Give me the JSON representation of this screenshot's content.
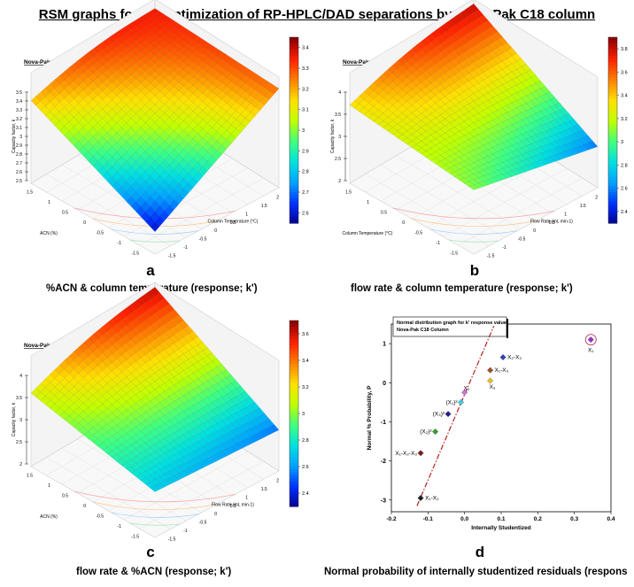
{
  "page_title": "RSM graphs for the optimization of RP-HPLC/DAD separations by Nova-Pak C18 column",
  "panels": {
    "a": {
      "letter": "a",
      "caption": "%ACN & column temperature (response; k')"
    },
    "b": {
      "letter": "b",
      "caption": "flow rate & column temperature (response; k')"
    },
    "c": {
      "letter": "c",
      "caption": "flow rate & %ACN (response; k')"
    },
    "d": {
      "letter": "d",
      "caption": "Normal probability of internally studentized residuals (respons"
    }
  },
  "colormap": [
    "#00008b",
    "#0030ff",
    "#00a0ff",
    "#00e0e0",
    "#40ff80",
    "#c0ff00",
    "#ffe000",
    "#ff8000",
    "#ff2000",
    "#8b0000"
  ],
  "chart_data": [
    {
      "id": "a",
      "type": "surface",
      "inset_label": "Nova-Pak C₁₈ column",
      "zlabel": "Capacity factor, k",
      "ylabel": "ACN (%)",
      "xlabel": "Column Temperature (°C)",
      "zlim": [
        2.5,
        3.5
      ],
      "z_ticks": [
        "2.5",
        "2.6",
        "2.7",
        "2.8",
        "2.9",
        "3",
        "3.1",
        "3.2",
        "3.3",
        "3.4",
        "3.5"
      ],
      "left_ticks": [
        "1.5",
        "1",
        "0.5",
        "0",
        "-0.5",
        "-1",
        "-1.5"
      ],
      "right_ticks": [
        "-1.5",
        "-1",
        "-0.5",
        "0",
        "0.5",
        "1",
        "1.5",
        "2"
      ],
      "colorbar_ticks": [
        "3.4",
        "3.3",
        "3.2",
        "3.1",
        "3",
        "2.9",
        "2.8",
        "2.7",
        "2.6"
      ],
      "corners": {
        "back": 3.4,
        "left": 3.2,
        "front": 2.55,
        "right": 3.3
      }
    },
    {
      "id": "b",
      "type": "surface",
      "inset_label": "Nova-Pak C₁₈ column",
      "zlabel": "Capacity factor, k",
      "ylabel": "Column Temperature (°C)",
      "xlabel": "Flow Rate (mL min-1)",
      "zlim": [
        2,
        4
      ],
      "z_ticks": [
        "2",
        "2.5",
        "3",
        "3.5",
        "4"
      ],
      "left_ticks": [
        "1.5",
        "1",
        "0.5",
        "0",
        "-0.5",
        "-1",
        "-1.5"
      ],
      "right_ticks": [
        "-1.5",
        "-1",
        "-0.5",
        "0",
        "0.5",
        "1",
        "1.5",
        "2"
      ],
      "colorbar_ticks": [
        "3.8",
        "3.6",
        "3.4",
        "3.2",
        "3",
        "2.8",
        "2.6",
        "2.4"
      ],
      "corners": {
        "back": 3.9,
        "left": 3.3,
        "front": 3.0,
        "right": 2.35
      }
    },
    {
      "id": "c",
      "type": "surface",
      "inset_label": "Nova-Pak C₁₈ column",
      "zlabel": "Capacity factor, k",
      "ylabel": "ACN (%)",
      "xlabel": "Flow Rate (mL min-1)",
      "zlim": [
        2,
        4
      ],
      "z_ticks": [
        "2",
        "2.5",
        "3",
        "3.5",
        "4"
      ],
      "left_ticks": [
        "1.5",
        "1",
        "0.5",
        "0",
        "-0.5",
        "-1",
        "-1.5"
      ],
      "right_ticks": [
        "-1.5",
        "-1",
        "-0.5",
        "0",
        "0.5",
        "1",
        "1.5",
        "2"
      ],
      "colorbar_ticks": [
        "3.6",
        "3.4",
        "3.2",
        "3",
        "2.8",
        "2.6",
        "2.4"
      ],
      "corners": {
        "back": 3.9,
        "left": 3.2,
        "front": 2.6,
        "right": 2.35
      }
    },
    {
      "id": "d",
      "type": "scatter",
      "legend": [
        "Normal distribution graph for k' response value",
        "Nova-Pak  C18 Column"
      ],
      "xlabel": "Internally Studentized",
      "ylabel": "Normal % Probability, P",
      "xlim": [
        -0.2,
        0.4
      ],
      "ylim": [
        -3.3,
        1.5
      ],
      "x_ticks": [
        -0.2,
        -0.1,
        0,
        0.1,
        0.2,
        0.3,
        0.4
      ],
      "x_tick_labels": [
        "-0.2",
        "-0.1",
        "0.0",
        "0.1",
        "0.2",
        "0.3",
        "0.4"
      ],
      "y_ticks": [
        -3,
        -2,
        -1,
        0,
        1
      ],
      "y_tick_labels": [
        "-3",
        "-2",
        "-1",
        "0",
        "1"
      ],
      "reference_line": [
        [
          -0.13,
          -3.15
        ],
        [
          0.08,
          1.45
        ]
      ],
      "points": [
        {
          "label": "X₁",
          "x": 0.345,
          "y": 1.1,
          "color": "#9b30c8",
          "circled": true
        },
        {
          "label": "X₂-X₃",
          "x": 0.105,
          "y": 0.65,
          "color": "#3040c0"
        },
        {
          "label": "X₁-X₃",
          "x": 0.07,
          "y": 0.32,
          "color": "#a0522d"
        },
        {
          "label": "X₃",
          "x": 0.07,
          "y": 0.05,
          "color": "#e8c020"
        },
        {
          "label": "X₂",
          "x": 0.0,
          "y": -0.25,
          "color": "#d070e0"
        },
        {
          "label": "(X₁)²",
          "x": -0.01,
          "y": -0.5,
          "color": "#40d0e0"
        },
        {
          "label": "(X₃)²",
          "x": -0.045,
          "y": -0.8,
          "color": "#202090"
        },
        {
          "label": "(X₂)²",
          "x": -0.08,
          "y": -1.25,
          "color": "#30a030"
        },
        {
          "label": "X₁-X₂-X₃",
          "x": -0.12,
          "y": -1.8,
          "color": "#802020"
        },
        {
          "label": "X₁-X₂",
          "x": -0.12,
          "y": -2.95,
          "color": "#202020"
        }
      ]
    }
  ]
}
